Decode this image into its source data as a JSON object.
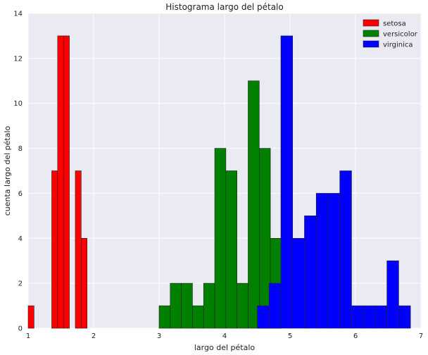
{
  "chart_data": {
    "type": "bar",
    "title": "Histograma largo del pétalo",
    "xlabel": "largo del pétalo",
    "ylabel": "cuenta largo del pétalo",
    "xlim": [
      1,
      7
    ],
    "ylim": [
      0,
      14
    ],
    "xticks": [
      1,
      2,
      3,
      4,
      5,
      6,
      7
    ],
    "yticks": [
      0,
      2,
      4,
      6,
      8,
      10,
      12,
      14
    ],
    "grid": true,
    "legend_position": "top-right",
    "series": [
      {
        "name": "setosa",
        "color": "#ff0000",
        "bin_width": 0.09,
        "bins": [
          {
            "x": 1.0,
            "count": 1
          },
          {
            "x": 1.09,
            "count": 0
          },
          {
            "x": 1.18,
            "count": 0
          },
          {
            "x": 1.27,
            "count": 0
          },
          {
            "x": 1.36,
            "count": 7
          },
          {
            "x": 1.45,
            "count": 13
          },
          {
            "x": 1.54,
            "count": 13
          },
          {
            "x": 1.63,
            "count": 0
          },
          {
            "x": 1.72,
            "count": 7
          },
          {
            "x": 1.81,
            "count": 4
          },
          {
            "x": 1.9,
            "count": 0
          }
        ]
      },
      {
        "name": "versicolor",
        "color": "#008000",
        "bin_width": 0.17,
        "bins": [
          {
            "x": 3.0,
            "count": 1
          },
          {
            "x": 3.17,
            "count": 2
          },
          {
            "x": 3.34,
            "count": 2
          },
          {
            "x": 3.51,
            "count": 1
          },
          {
            "x": 3.68,
            "count": 2
          },
          {
            "x": 3.85,
            "count": 8
          },
          {
            "x": 4.02,
            "count": 7
          },
          {
            "x": 4.19,
            "count": 2
          },
          {
            "x": 4.36,
            "count": 11
          },
          {
            "x": 4.53,
            "count": 8
          },
          {
            "x": 4.7,
            "count": 4
          }
        ]
      },
      {
        "name": "virginica",
        "color": "#0000ff",
        "bin_width": 0.18,
        "bins": [
          {
            "x": 4.5,
            "count": 1
          },
          {
            "x": 4.68,
            "count": 2
          },
          {
            "x": 4.86,
            "count": 13
          },
          {
            "x": 5.04,
            "count": 4
          },
          {
            "x": 5.22,
            "count": 5
          },
          {
            "x": 5.4,
            "count": 6
          },
          {
            "x": 5.58,
            "count": 6
          },
          {
            "x": 5.76,
            "count": 7
          },
          {
            "x": 5.94,
            "count": 1
          },
          {
            "x": 6.12,
            "count": 1
          },
          {
            "x": 6.3,
            "count": 1
          },
          {
            "x": 6.48,
            "count": 3
          },
          {
            "x": 6.66,
            "count": 1
          }
        ]
      }
    ]
  }
}
